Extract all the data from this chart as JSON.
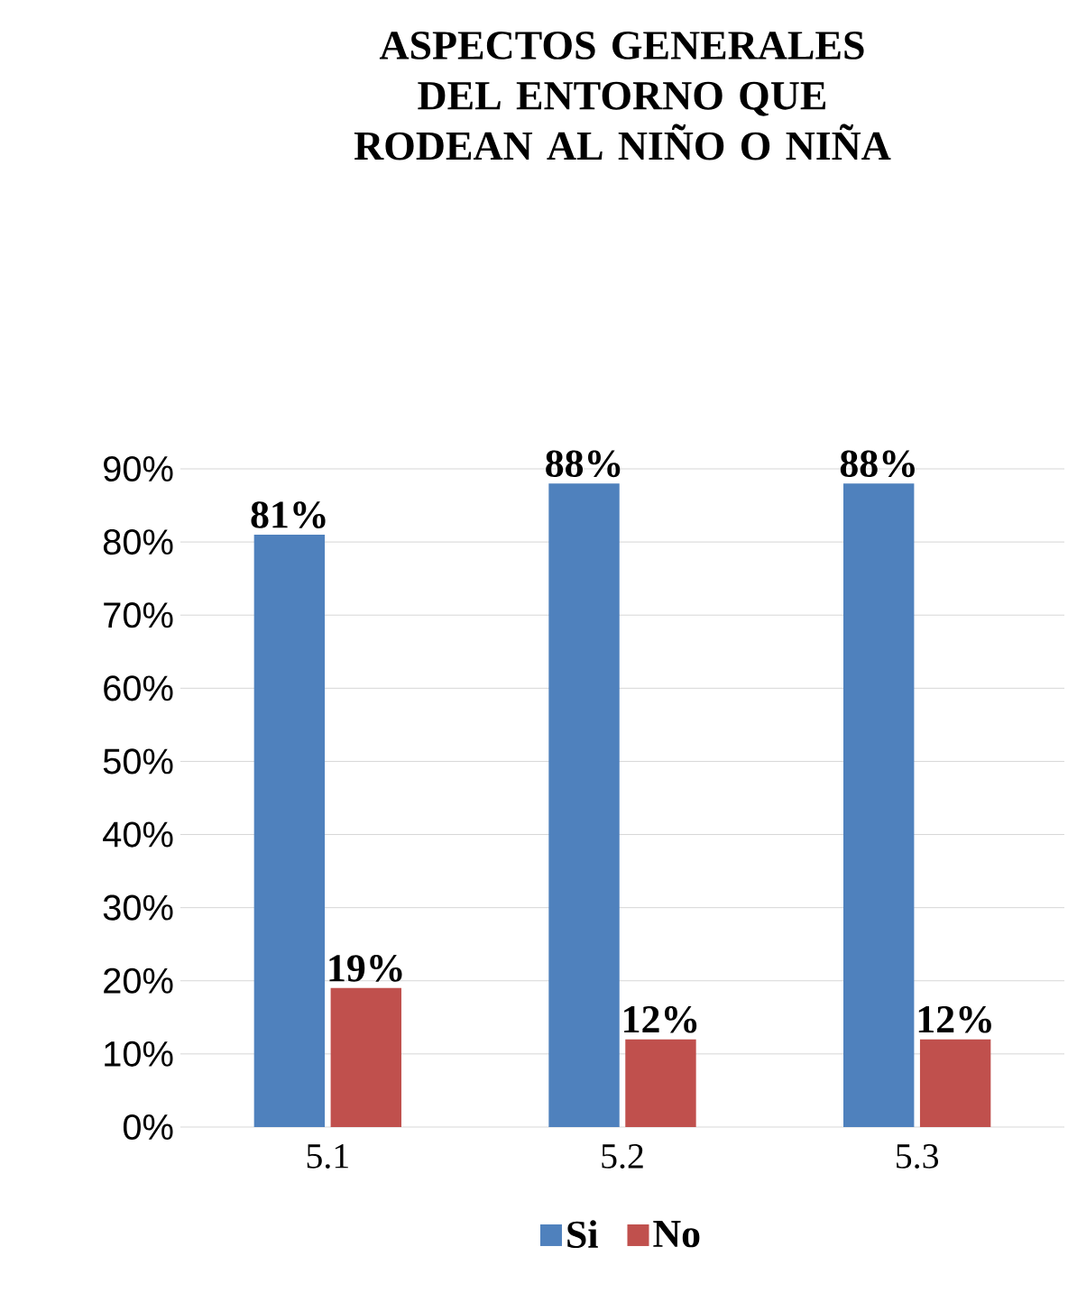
{
  "chart_data": {
    "type": "bar",
    "title": "ASPECTOS GENERALES DEL ENTORNO QUE RODEAN AL NIÑO O NIÑA",
    "categories": [
      "5.1",
      "5.2",
      "5.3"
    ],
    "series": [
      {
        "name": "Si",
        "color": "#4f81bd",
        "values": [
          81,
          88,
          88
        ],
        "value_labels": [
          "81%",
          "88%",
          "88%"
        ]
      },
      {
        "name": "No",
        "color": "#c0504d",
        "values": [
          19,
          12,
          12
        ],
        "value_labels": [
          "19%",
          "12%",
          "12%"
        ]
      }
    ],
    "ylim": [
      0,
      90
    ],
    "yticks": [
      {
        "value": 0,
        "label": "0%"
      },
      {
        "value": 10,
        "label": "10%"
      },
      {
        "value": 20,
        "label": "20%"
      },
      {
        "value": 30,
        "label": "30%"
      },
      {
        "value": 40,
        "label": "40%"
      },
      {
        "value": 50,
        "label": "50%"
      },
      {
        "value": 60,
        "label": "60%"
      },
      {
        "value": 70,
        "label": "70%"
      },
      {
        "value": 80,
        "label": "80%"
      },
      {
        "value": 90,
        "label": "90%"
      }
    ],
    "grid": "y",
    "legend": "bottom"
  }
}
